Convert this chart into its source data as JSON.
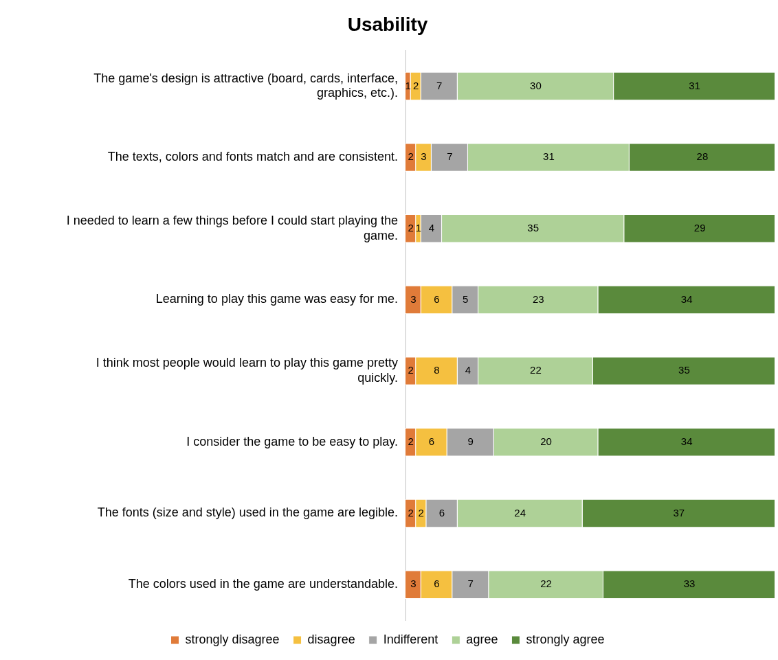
{
  "chart_data": {
    "type": "bar",
    "orientation": "horizontal",
    "stacked": true,
    "title": "Usability",
    "categories": [
      "The game's design is attractive (board, cards, interface, graphics, etc.).",
      "The texts, colors and fonts match and are consistent.",
      "I needed to learn a few things before I could start playing the game.",
      "Learning to play this game was easy for me.",
      "I think most people would learn to play this game pretty quickly.",
      "I consider the game to be easy to play.",
      "The fonts (size and style) used in the game are legible.",
      "The colors used in the game are understandable."
    ],
    "series": [
      {
        "name": "strongly disagree",
        "color": "#e07b39",
        "values": [
          1,
          2,
          2,
          3,
          2,
          2,
          2,
          3
        ]
      },
      {
        "name": "disagree",
        "color": "#f5c040",
        "values": [
          2,
          3,
          1,
          6,
          8,
          6,
          2,
          6
        ]
      },
      {
        "name": "Indifferent",
        "color": "#a5a5a5",
        "values": [
          7,
          7,
          4,
          5,
          4,
          9,
          6,
          7
        ]
      },
      {
        "name": "agree",
        "color": "#aed197",
        "values": [
          30,
          31,
          35,
          23,
          22,
          20,
          24,
          22
        ]
      },
      {
        "name": "strongly agree",
        "color": "#5a8a3c",
        "values": [
          31,
          28,
          29,
          34,
          35,
          34,
          37,
          33
        ]
      }
    ],
    "data_labels": true,
    "legend": "bottom",
    "tick_labels": "y",
    "grid": false
  }
}
